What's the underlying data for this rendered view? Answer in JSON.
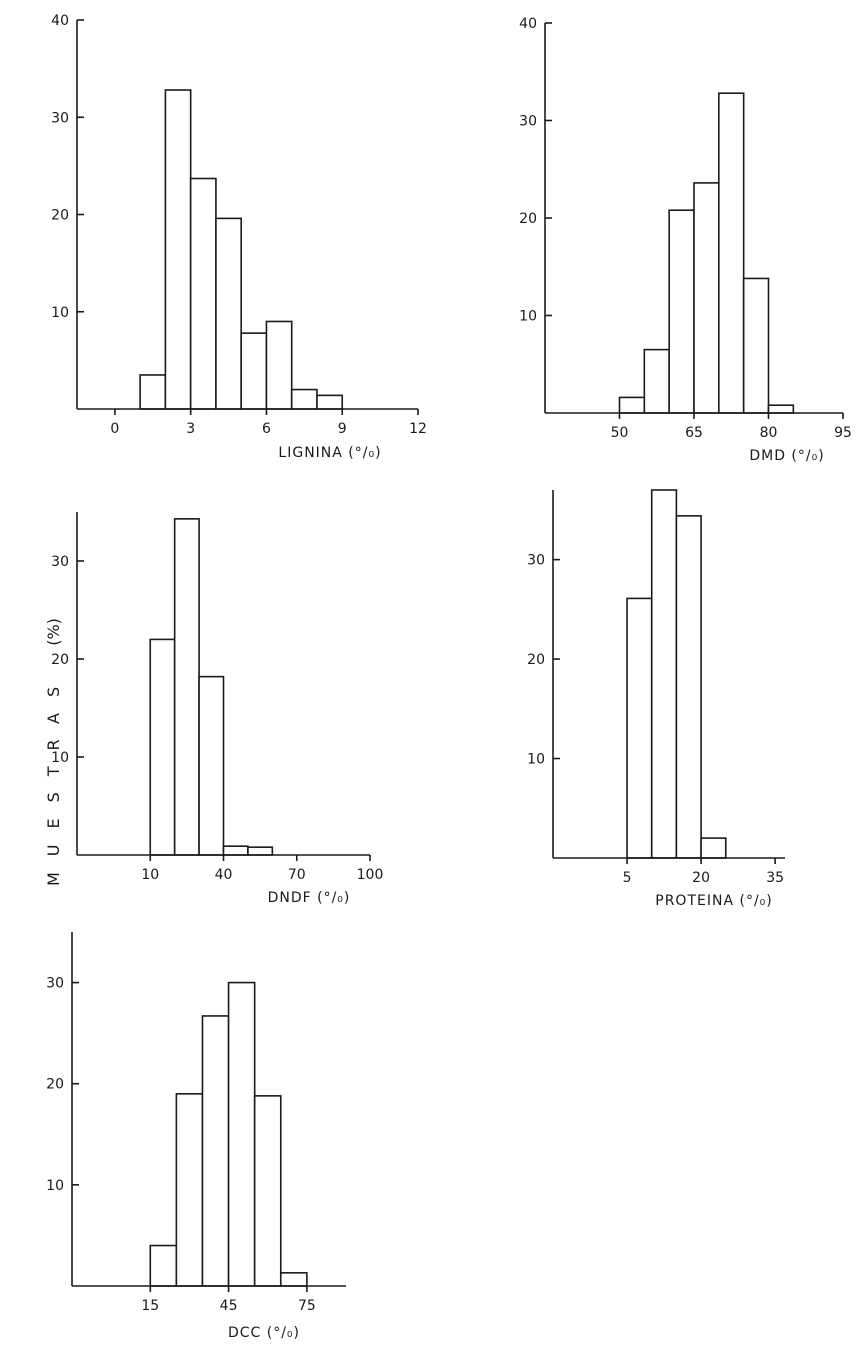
{
  "shared_ylabel": "MUESTRAS",
  "shared_ylabel_unit": "(%)",
  "chart_data": [
    {
      "type": "bar",
      "xlabel": "LIGNINA (°/₀)",
      "xticks": [
        0,
        3,
        6,
        9,
        12
      ],
      "xlim": [
        -1.5,
        12
      ],
      "yticks": [
        10,
        20,
        30,
        40
      ],
      "ylim": [
        0,
        40
      ],
      "bins": [
        {
          "x0": 1,
          "x1": 2,
          "value": 3.5
        },
        {
          "x0": 2,
          "x1": 3,
          "value": 32.8
        },
        {
          "x0": 3,
          "x1": 4,
          "value": 23.7
        },
        {
          "x0": 4,
          "x1": 5,
          "value": 19.6
        },
        {
          "x0": 5,
          "x1": 6,
          "value": 7.8
        },
        {
          "x0": 6,
          "x1": 7,
          "value": 9.0
        },
        {
          "x0": 7,
          "x1": 8,
          "value": 2.0
        },
        {
          "x0": 8,
          "x1": 9,
          "value": 1.4
        }
      ]
    },
    {
      "type": "bar",
      "xlabel": "DMD (°/₀)",
      "xticks": [
        50,
        65,
        80,
        95
      ],
      "xlim": [
        35,
        95
      ],
      "yticks": [
        10,
        20,
        30,
        40
      ],
      "ylim": [
        0,
        40
      ],
      "bins": [
        {
          "x0": 50,
          "x1": 55,
          "value": 1.6
        },
        {
          "x0": 55,
          "x1": 60,
          "value": 6.5
        },
        {
          "x0": 60,
          "x1": 65,
          "value": 20.8
        },
        {
          "x0": 65,
          "x1": 70,
          "value": 23.6
        },
        {
          "x0": 70,
          "x1": 75,
          "value": 32.8
        },
        {
          "x0": 75,
          "x1": 80,
          "value": 13.8
        },
        {
          "x0": 80,
          "x1": 85,
          "value": 0.8
        }
      ]
    },
    {
      "type": "bar",
      "xlabel": "DNDF (°/₀)",
      "xticks": [
        10,
        40,
        70,
        100
      ],
      "xlim": [
        -20,
        100
      ],
      "yticks": [
        10,
        20,
        30
      ],
      "ylim": [
        0,
        35
      ],
      "bins": [
        {
          "x0": 10,
          "x1": 20,
          "value": 22.0
        },
        {
          "x0": 20,
          "x1": 30,
          "value": 34.3
        },
        {
          "x0": 30,
          "x1": 40,
          "value": 18.2
        },
        {
          "x0": 40,
          "x1": 50,
          "value": 0.9
        },
        {
          "x0": 50,
          "x1": 60,
          "value": 0.8
        }
      ]
    },
    {
      "type": "bar",
      "xlabel": "PROTEINA (°/₀)",
      "xticks": [
        5,
        20,
        35
      ],
      "xlim": [
        -10,
        37
      ],
      "yticks": [
        10,
        20,
        30
      ],
      "ylim": [
        0,
        37
      ],
      "bins": [
        {
          "x0": 5,
          "x1": 10,
          "value": 26.1
        },
        {
          "x0": 10,
          "x1": 15,
          "value": 37.0
        },
        {
          "x0": 15,
          "x1": 20,
          "value": 34.4
        },
        {
          "x0": 20,
          "x1": 25,
          "value": 2.0
        }
      ]
    },
    {
      "type": "bar",
      "xlabel": "DCC (°/₀)",
      "xticks": [
        15,
        45,
        75
      ],
      "xlim": [
        -15,
        90
      ],
      "yticks": [
        10,
        20,
        30
      ],
      "ylim": [
        0,
        35
      ],
      "bins": [
        {
          "x0": 15,
          "x1": 25,
          "value": 4.0
        },
        {
          "x0": 25,
          "x1": 35,
          "value": 19.0
        },
        {
          "x0": 35,
          "x1": 45,
          "value": 26.7
        },
        {
          "x0": 45,
          "x1": 55,
          "value": 30.0
        },
        {
          "x0": 55,
          "x1": 65,
          "value": 18.8
        },
        {
          "x0": 65,
          "x1": 75,
          "value": 1.3
        }
      ]
    }
  ]
}
